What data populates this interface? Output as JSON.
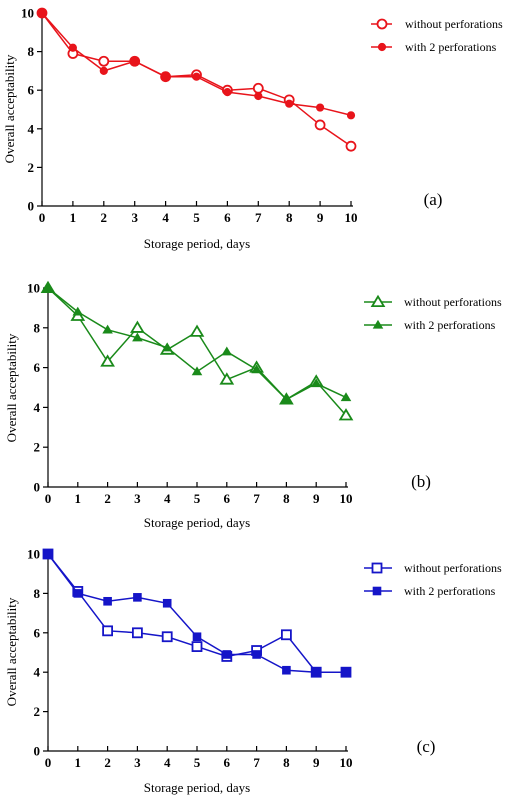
{
  "chart_data": [
    {
      "type": "line",
      "panel_label": "(a)",
      "xlabel": "Storage period, days",
      "ylabel": "Overall acceptability",
      "xlim": [
        0,
        10
      ],
      "ylim": [
        0,
        10
      ],
      "x_ticks": [
        0,
        1,
        2,
        3,
        4,
        5,
        6,
        7,
        8,
        9,
        10
      ],
      "y_ticks": [
        0,
        2,
        4,
        6,
        8,
        10
      ],
      "grid": false,
      "legend_position": "top-right",
      "color": "#e8141b",
      "series": [
        {
          "name": "without perforations",
          "marker": "open-circle",
          "x": [
            0,
            1,
            2,
            3,
            4,
            5,
            6,
            7,
            8,
            9,
            10
          ],
          "y": [
            10,
            7.9,
            7.5,
            7.5,
            6.7,
            6.8,
            6.0,
            6.1,
            5.5,
            4.2,
            3.1
          ]
        },
        {
          "name": "with  2 perforations",
          "marker": "filled-circle",
          "x": [
            0,
            1,
            2,
            3,
            4,
            5,
            6,
            7,
            8,
            9,
            10
          ],
          "y": [
            10,
            8.2,
            7.0,
            7.5,
            6.7,
            6.7,
            5.9,
            5.7,
            5.3,
            5.1,
            4.7
          ]
        }
      ]
    },
    {
      "type": "line",
      "panel_label": "(b)",
      "xlabel": "Storage period, days",
      "ylabel": "Overall acceptability",
      "xlim": [
        0,
        10
      ],
      "ylim": [
        0,
        10
      ],
      "x_ticks": [
        0,
        1,
        2,
        3,
        4,
        5,
        6,
        7,
        8,
        9,
        10
      ],
      "y_ticks": [
        0,
        2,
        4,
        6,
        8,
        10
      ],
      "grid": false,
      "legend_position": "top-right",
      "color": "#1a8a1a",
      "series": [
        {
          "name": "without perforations",
          "marker": "open-triangle",
          "x": [
            0,
            1,
            2,
            3,
            4,
            5,
            6,
            7,
            8,
            9,
            10
          ],
          "y": [
            10,
            8.6,
            6.3,
            8.0,
            6.9,
            7.8,
            5.4,
            6.0,
            4.4,
            5.3,
            3.6
          ]
        },
        {
          "name": "with 2 perforations",
          "marker": "filled-triangle",
          "x": [
            0,
            1,
            2,
            3,
            4,
            5,
            6,
            7,
            8,
            9,
            10
          ],
          "y": [
            10,
            8.8,
            7.9,
            7.5,
            7.0,
            5.8,
            6.8,
            5.9,
            4.4,
            5.2,
            4.5
          ]
        }
      ]
    },
    {
      "type": "line",
      "panel_label": "(c)",
      "xlabel": "Storage period, days",
      "ylabel": "Overall acceptability",
      "xlim": [
        0,
        10
      ],
      "ylim": [
        0,
        10
      ],
      "x_ticks": [
        0,
        1,
        2,
        3,
        4,
        5,
        6,
        7,
        8,
        9,
        10
      ],
      "y_ticks": [
        0,
        2,
        4,
        6,
        8,
        10
      ],
      "grid": false,
      "legend_position": "top-right",
      "color": "#1515c8",
      "series": [
        {
          "name": "without perforations",
          "marker": "open-square",
          "x": [
            0,
            1,
            2,
            3,
            4,
            5,
            6,
            7,
            8,
            9,
            10
          ],
          "y": [
            10,
            8.1,
            6.1,
            6.0,
            5.8,
            5.3,
            4.8,
            5.1,
            5.9,
            4.0,
            4.0
          ]
        },
        {
          "name": "with 2 perforations",
          "marker": "filled-square",
          "x": [
            0,
            1,
            2,
            3,
            4,
            5,
            6,
            7,
            8,
            9,
            10
          ],
          "y": [
            10,
            8.0,
            7.6,
            7.8,
            7.5,
            5.8,
            4.9,
            4.9,
            4.1,
            4.0,
            4.0
          ]
        }
      ]
    }
  ]
}
